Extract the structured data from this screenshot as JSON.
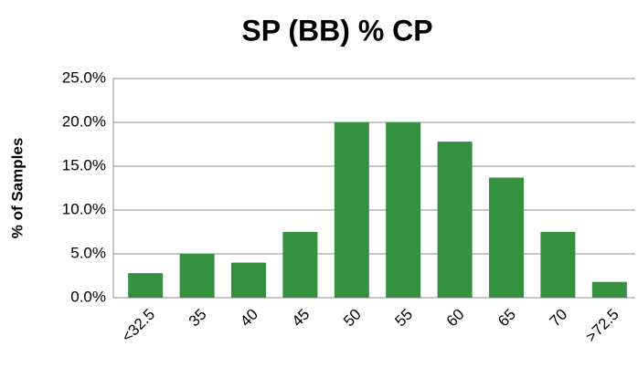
{
  "chart_data": {
    "type": "bar",
    "title": "SP (BB) % CP",
    "y_label": "% of Samples",
    "categories": [
      "<32.5",
      "35",
      "40",
      "45",
      "50",
      "55",
      "60",
      "65",
      "70",
      ">72.5"
    ],
    "values": [
      2.8,
      5.0,
      4.0,
      7.5,
      20.0,
      20.0,
      17.8,
      13.7,
      7.5,
      1.8
    ],
    "color": "#33913f",
    "ylim": [
      0,
      25
    ],
    "yticks": [
      {
        "value": 0,
        "label": "0.0%"
      },
      {
        "value": 5,
        "label": "5.0%"
      },
      {
        "value": 10,
        "label": "10.0%"
      },
      {
        "value": 15,
        "label": "15.0%"
      },
      {
        "value": 20,
        "label": "20.0%"
      },
      {
        "value": 25,
        "label": "25.0%"
      }
    ],
    "grid": true
  }
}
